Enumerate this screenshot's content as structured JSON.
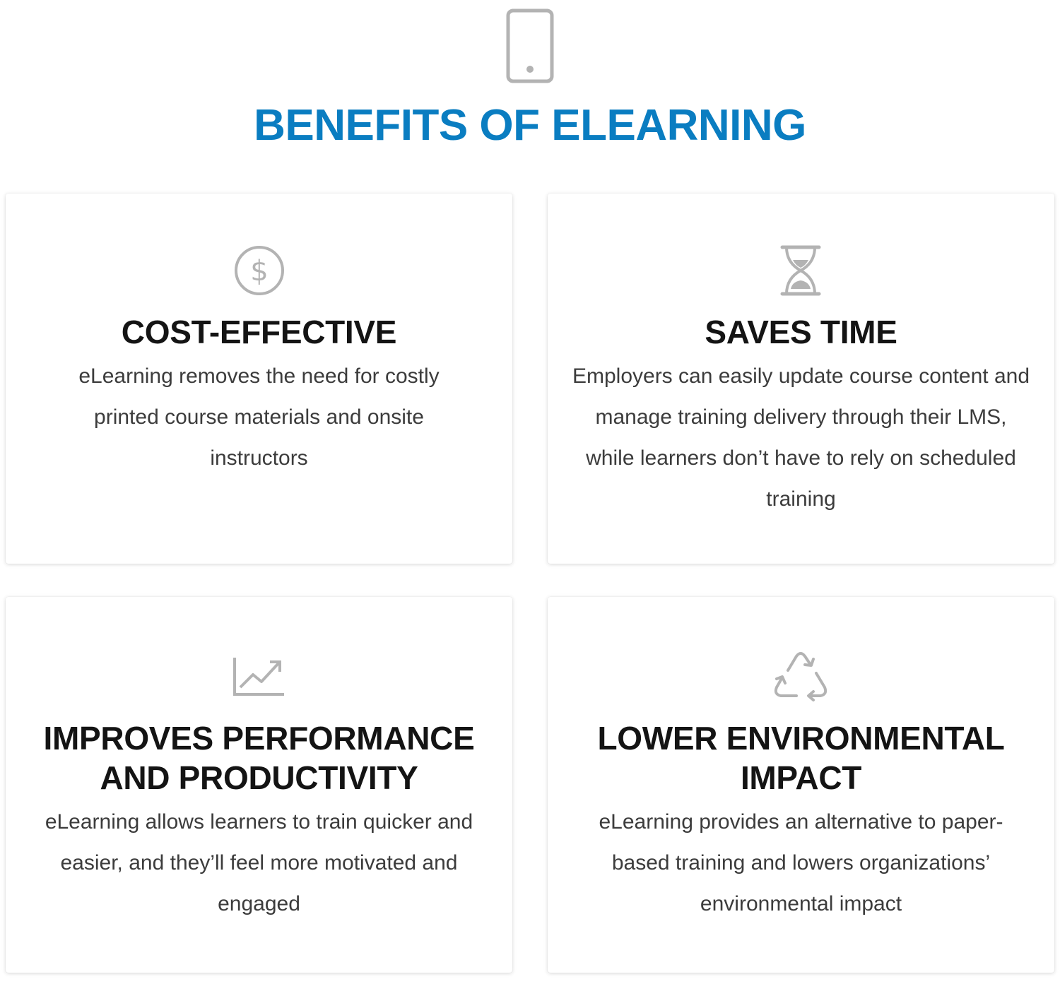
{
  "header": {
    "icon": "smartphone-icon",
    "title": "BENEFITS OF ELEARNING"
  },
  "colors": {
    "accent": "#0a7dc1",
    "icon": "#b3b3b3",
    "title": "#141414",
    "body": "#3c3c3c"
  },
  "cards": [
    {
      "icon": "dollar-circle-icon",
      "title": "COST-EFFECTIVE",
      "text": "eLearning removes the need for costly printed course materials and onsite instructors"
    },
    {
      "icon": "hourglass-icon",
      "title": "SAVES TIME",
      "text": "Employers can easily update course content and manage training delivery through their LMS, while learners don’t have to rely on scheduled training"
    },
    {
      "icon": "growth-chart-icon",
      "title": "IMPROVES PERFORMANCE AND PRODUCTIVITY",
      "text": "eLearning allows learners to train quicker and easier, and they’ll feel more motivated and engaged"
    },
    {
      "icon": "recycle-icon",
      "title": "LOWER ENVIRONMENTAL IMPACT",
      "text": "eLearning provides an alternative to paper-based training and lowers organizations’ environmental impact"
    }
  ]
}
